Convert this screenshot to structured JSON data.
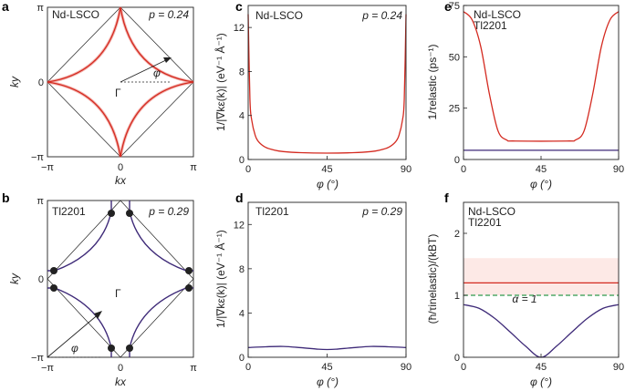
{
  "colors": {
    "red": "#d42a20",
    "purple": "#3e2a78",
    "green": "#2e9b4e",
    "band": "#fde9e6",
    "black": "#222222"
  },
  "panels": {
    "a": {
      "letter": "a",
      "material": "Nd-LSCO",
      "doping": "p = 0.24",
      "xlabel": "kx",
      "ylabel": "ky",
      "ticks": [
        "−π",
        "0",
        "π"
      ],
      "gamma": "Γ",
      "phi": "φ"
    },
    "b": {
      "letter": "b",
      "material": "Tl2201",
      "doping": "p = 0.29",
      "xlabel": "kx",
      "ylabel": "ky",
      "ticks": [
        "−π",
        "0",
        "π"
      ],
      "gamma": "Γ",
      "phi": "φ"
    },
    "c": {
      "letter": "c",
      "material": "Nd-LSCO",
      "doping": "p = 0.24",
      "xlabel": "φ (°)",
      "ylabel": "1/|∇kε(k)| (eV⁻¹ Å⁻¹)"
    },
    "d": {
      "letter": "d",
      "material": "Tl2201",
      "doping": "p = 0.29",
      "xlabel": "φ (°)",
      "ylabel": "1/|∇kε(k)| (eV⁻¹ Å⁻¹)"
    },
    "e": {
      "letter": "e",
      "legend": [
        "Nd-LSCO",
        "Tl2201"
      ],
      "xlabel": "φ (°)",
      "ylabel": "1/τelastic (ps⁻¹)"
    },
    "f": {
      "letter": "f",
      "legend": [
        "Nd-LSCO",
        "Tl2201"
      ],
      "xlabel": "φ (°)",
      "ylabel": "(ħ/τinelastic)/(kBT)",
      "annotation": "α = 1"
    }
  },
  "chart_data": [
    {
      "type": "line",
      "panel": "c",
      "x": [
        0,
        1,
        2,
        4,
        6,
        10,
        15,
        20,
        30,
        45,
        60,
        70,
        75,
        80,
        84,
        86,
        88,
        89,
        90
      ],
      "y": [
        13.2,
        5.5,
        3.6,
        2.2,
        1.6,
        1.1,
        0.85,
        0.72,
        0.62,
        0.58,
        0.62,
        0.72,
        0.85,
        1.1,
        1.6,
        2.2,
        3.6,
        5.5,
        13.2
      ],
      "xlim": [
        0,
        90
      ],
      "ylim": [
        0,
        14
      ],
      "xticks": [
        0,
        45,
        90
      ],
      "yticks": [
        0,
        4,
        8,
        12
      ]
    },
    {
      "type": "line",
      "panel": "d",
      "x": [
        0,
        10,
        20,
        30,
        40,
        45,
        50,
        60,
        70,
        80,
        90
      ],
      "y": [
        0.88,
        0.95,
        0.98,
        0.87,
        0.73,
        0.7,
        0.73,
        0.87,
        0.98,
        0.95,
        0.88
      ],
      "xlim": [
        0,
        90
      ],
      "ylim": [
        0,
        14
      ],
      "xticks": [
        0,
        45,
        90
      ],
      "yticks": [
        0,
        4,
        8,
        12
      ]
    },
    {
      "type": "line",
      "panel": "e",
      "xlim": [
        0,
        90
      ],
      "ylim": [
        0,
        75
      ],
      "xticks": [
        0,
        45,
        90
      ],
      "yticks": [
        0,
        25,
        50,
        75
      ],
      "series": [
        {
          "name": "Nd-LSCO",
          "x": [
            0,
            5,
            10,
            15,
            20,
            25,
            30,
            60,
            65,
            70,
            75,
            80,
            85,
            90
          ],
          "y": [
            72,
            68,
            55,
            32,
            14,
            9.5,
            9,
            9,
            9.5,
            14,
            32,
            55,
            68,
            72
          ]
        },
        {
          "name": "Tl2201",
          "x": [
            0,
            90
          ],
          "y": [
            4.5,
            4.5
          ]
        }
      ]
    },
    {
      "type": "line",
      "panel": "f",
      "xlim": [
        0,
        90
      ],
      "ylim": [
        0,
        2.5
      ],
      "xticks": [
        0,
        45,
        90
      ],
      "yticks": [
        0,
        1,
        2
      ],
      "series": [
        {
          "name": "Nd-LSCO",
          "x": [
            0,
            90
          ],
          "y": [
            1.2,
            1.2
          ],
          "band": [
            1.0,
            1.6
          ]
        },
        {
          "name": "Tl2201",
          "x": [
            0,
            9,
            18,
            27,
            36,
            45,
            54,
            63,
            72,
            81,
            90
          ],
          "y": [
            0.85,
            0.79,
            0.63,
            0.41,
            0.18,
            0.0,
            0.18,
            0.41,
            0.63,
            0.79,
            0.85
          ]
        },
        {
          "name": "α = 1",
          "x": [
            0,
            90
          ],
          "y": [
            1.0,
            1.0
          ]
        }
      ]
    }
  ]
}
